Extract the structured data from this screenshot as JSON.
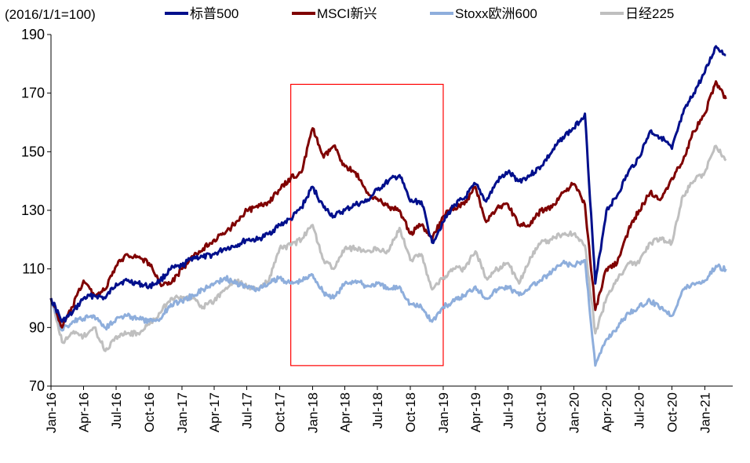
{
  "chart_data": {
    "type": "line",
    "y_unit_label": "(2016/1/1=100)",
    "ylim": [
      70,
      190
    ],
    "y_ticks": [
      "70",
      "90",
      "110",
      "130",
      "150",
      "170",
      "190"
    ],
    "x_ticks": [
      "Jan-16",
      "Apr-16",
      "Jul-16",
      "Oct-16",
      "Jan-17",
      "Apr-17",
      "Jul-17",
      "Oct-17",
      "Jan-18",
      "Apr-18",
      "Jul-18",
      "Oct-18",
      "Jan-19",
      "Apr-19",
      "Jul-19",
      "Oct-19",
      "Jan-20",
      "Apr-20",
      "Jul-20",
      "Oct-20",
      "Jan-21"
    ],
    "x_tick_dates": [
      "2016-01",
      "2016-04",
      "2016-07",
      "2016-10",
      "2017-01",
      "2017-04",
      "2017-07",
      "2017-10",
      "2018-01",
      "2018-04",
      "2018-07",
      "2018-10",
      "2019-01",
      "2019-04",
      "2019-07",
      "2019-10",
      "2020-01",
      "2020-04",
      "2020-07",
      "2020-10",
      "2021-01"
    ],
    "grid": false,
    "legend_position": "top",
    "highlight_box": {
      "x_start": "2017-11",
      "x_end": "2019-01",
      "y_range": [
        77,
        173
      ],
      "color": "#ff0000"
    },
    "series": [
      {
        "name": "标普500",
        "color": "#000f8c",
        "points": [
          [
            "2016-01",
            100
          ],
          [
            "2016-02",
            92
          ],
          [
            "2016-03",
            95
          ],
          [
            "2016-04",
            100
          ],
          [
            "2016-05",
            101
          ],
          [
            "2016-06",
            100
          ],
          [
            "2016-07",
            105
          ],
          [
            "2016-08",
            106
          ],
          [
            "2016-09",
            105
          ],
          [
            "2016-10",
            104
          ],
          [
            "2016-11",
            106
          ],
          [
            "2016-12",
            110
          ],
          [
            "2017-01",
            111
          ],
          [
            "2017-02",
            114
          ],
          [
            "2017-03",
            114
          ],
          [
            "2017-04",
            115
          ],
          [
            "2017-05",
            117
          ],
          [
            "2017-06",
            118
          ],
          [
            "2017-07",
            120
          ],
          [
            "2017-08",
            120
          ],
          [
            "2017-09",
            122
          ],
          [
            "2017-10",
            125
          ],
          [
            "2017-11",
            127
          ],
          [
            "2017-12",
            131
          ],
          [
            "2018-01",
            138
          ],
          [
            "2018-02",
            131
          ],
          [
            "2018-03",
            128
          ],
          [
            "2018-04",
            130
          ],
          [
            "2018-05",
            132
          ],
          [
            "2018-06",
            133
          ],
          [
            "2018-07",
            137
          ],
          [
            "2018-08",
            140
          ],
          [
            "2018-09",
            142
          ],
          [
            "2018-10",
            133
          ],
          [
            "2018-11",
            133
          ],
          [
            "2018-12",
            119
          ],
          [
            "2019-01",
            126
          ],
          [
            "2019-02",
            132
          ],
          [
            "2019-03",
            134
          ],
          [
            "2019-04",
            139
          ],
          [
            "2019-05",
            133
          ],
          [
            "2019-06",
            140
          ],
          [
            "2019-07",
            143
          ],
          [
            "2019-08",
            140
          ],
          [
            "2019-09",
            142
          ],
          [
            "2019-10",
            145
          ],
          [
            "2019-11",
            150
          ],
          [
            "2019-12",
            155
          ],
          [
            "2020-01",
            158
          ],
          [
            "2020-02",
            163
          ],
          [
            "2020-03",
            105
          ],
          [
            "2020-04",
            130
          ],
          [
            "2020-05",
            135
          ],
          [
            "2020-06",
            143
          ],
          [
            "2020-07",
            148
          ],
          [
            "2020-08",
            157
          ],
          [
            "2020-09",
            155
          ],
          [
            "2020-10",
            151
          ],
          [
            "2020-11",
            163
          ],
          [
            "2020-12",
            170
          ],
          [
            "2021-01",
            177
          ],
          [
            "2021-02",
            186
          ],
          [
            "2021-03",
            183
          ]
        ]
      },
      {
        "name": "MSCI新兴",
        "color": "#7f0000",
        "points": [
          [
            "2016-01",
            100
          ],
          [
            "2016-02",
            90
          ],
          [
            "2016-03",
            97
          ],
          [
            "2016-04",
            106
          ],
          [
            "2016-05",
            101
          ],
          [
            "2016-06",
            103
          ],
          [
            "2016-07",
            111
          ],
          [
            "2016-08",
            115
          ],
          [
            "2016-09",
            114
          ],
          [
            "2016-10",
            112
          ],
          [
            "2016-11",
            105
          ],
          [
            "2016-12",
            105
          ],
          [
            "2017-01",
            110
          ],
          [
            "2017-02",
            114
          ],
          [
            "2017-03",
            117
          ],
          [
            "2017-04",
            120
          ],
          [
            "2017-05",
            122
          ],
          [
            "2017-06",
            126
          ],
          [
            "2017-07",
            130
          ],
          [
            "2017-08",
            131
          ],
          [
            "2017-09",
            133
          ],
          [
            "2017-10",
            137
          ],
          [
            "2017-11",
            141
          ],
          [
            "2017-12",
            143
          ],
          [
            "2018-01",
            158
          ],
          [
            "2018-02",
            148
          ],
          [
            "2018-03",
            152
          ],
          [
            "2018-04",
            145
          ],
          [
            "2018-05",
            143
          ],
          [
            "2018-06",
            136
          ],
          [
            "2018-07",
            134
          ],
          [
            "2018-08",
            131
          ],
          [
            "2018-09",
            130
          ],
          [
            "2018-10",
            122
          ],
          [
            "2018-11",
            125
          ],
          [
            "2018-12",
            120
          ],
          [
            "2019-01",
            128
          ],
          [
            "2019-02",
            131
          ],
          [
            "2019-03",
            132
          ],
          [
            "2019-04",
            138
          ],
          [
            "2019-05",
            126
          ],
          [
            "2019-06",
            131
          ],
          [
            "2019-07",
            132
          ],
          [
            "2019-08",
            125
          ],
          [
            "2019-09",
            125
          ],
          [
            "2019-10",
            130
          ],
          [
            "2019-11",
            131
          ],
          [
            "2019-12",
            136
          ],
          [
            "2020-01",
            139
          ],
          [
            "2020-02",
            132
          ],
          [
            "2020-03",
            96
          ],
          [
            "2020-04",
            110
          ],
          [
            "2020-05",
            112
          ],
          [
            "2020-06",
            123
          ],
          [
            "2020-07",
            130
          ],
          [
            "2020-08",
            136
          ],
          [
            "2020-09",
            134
          ],
          [
            "2020-10",
            141
          ],
          [
            "2020-11",
            147
          ],
          [
            "2020-12",
            157
          ],
          [
            "2021-01",
            163
          ],
          [
            "2021-02",
            174
          ],
          [
            "2021-03",
            168
          ]
        ]
      },
      {
        "name": "Stoxx欧洲600",
        "color": "#8eaedc",
        "points": [
          [
            "2016-01",
            100
          ],
          [
            "2016-02",
            89
          ],
          [
            "2016-03",
            92
          ],
          [
            "2016-04",
            93
          ],
          [
            "2016-05",
            94
          ],
          [
            "2016-06",
            90
          ],
          [
            "2016-07",
            93
          ],
          [
            "2016-08",
            94
          ],
          [
            "2016-09",
            93
          ],
          [
            "2016-10",
            92
          ],
          [
            "2016-11",
            93
          ],
          [
            "2016-12",
            98
          ],
          [
            "2017-01",
            99
          ],
          [
            "2017-02",
            101
          ],
          [
            "2017-03",
            103
          ],
          [
            "2017-04",
            105
          ],
          [
            "2017-05",
            107
          ],
          [
            "2017-06",
            105
          ],
          [
            "2017-07",
            104
          ],
          [
            "2017-08",
            103
          ],
          [
            "2017-09",
            105
          ],
          [
            "2017-10",
            107
          ],
          [
            "2017-11",
            105
          ],
          [
            "2017-12",
            106
          ],
          [
            "2018-01",
            108
          ],
          [
            "2018-02",
            102
          ],
          [
            "2018-03",
            100
          ],
          [
            "2018-04",
            105
          ],
          [
            "2018-05",
            106
          ],
          [
            "2018-06",
            104
          ],
          [
            "2018-07",
            105
          ],
          [
            "2018-08",
            103
          ],
          [
            "2018-09",
            104
          ],
          [
            "2018-10",
            98
          ],
          [
            "2018-11",
            97
          ],
          [
            "2018-12",
            92
          ],
          [
            "2019-01",
            97
          ],
          [
            "2019-02",
            99
          ],
          [
            "2019-03",
            101
          ],
          [
            "2019-04",
            104
          ],
          [
            "2019-05",
            100
          ],
          [
            "2019-06",
            103
          ],
          [
            "2019-07",
            104
          ],
          [
            "2019-08",
            101
          ],
          [
            "2019-09",
            104
          ],
          [
            "2019-10",
            106
          ],
          [
            "2019-11",
            109
          ],
          [
            "2019-12",
            112
          ],
          [
            "2020-01",
            111
          ],
          [
            "2020-02",
            113
          ],
          [
            "2020-03",
            77
          ],
          [
            "2020-04",
            86
          ],
          [
            "2020-05",
            90
          ],
          [
            "2020-06",
            95
          ],
          [
            "2020-07",
            97
          ],
          [
            "2020-08",
            99
          ],
          [
            "2020-09",
            97
          ],
          [
            "2020-10",
            94
          ],
          [
            "2020-11",
            103
          ],
          [
            "2020-12",
            105
          ],
          [
            "2021-01",
            106
          ],
          [
            "2021-02",
            111
          ],
          [
            "2021-03",
            110
          ]
        ]
      },
      {
        "name": "日经225",
        "color": "#bfbfbf",
        "points": [
          [
            "2016-01",
            100
          ],
          [
            "2016-02",
            85
          ],
          [
            "2016-03",
            88
          ],
          [
            "2016-04",
            87
          ],
          [
            "2016-05",
            90
          ],
          [
            "2016-06",
            82
          ],
          [
            "2016-07",
            87
          ],
          [
            "2016-08",
            88
          ],
          [
            "2016-09",
            88
          ],
          [
            "2016-10",
            91
          ],
          [
            "2016-11",
            95
          ],
          [
            "2016-12",
            100
          ],
          [
            "2017-01",
            100
          ],
          [
            "2017-02",
            100
          ],
          [
            "2017-03",
            97
          ],
          [
            "2017-04",
            99
          ],
          [
            "2017-05",
            103
          ],
          [
            "2017-06",
            106
          ],
          [
            "2017-07",
            104
          ],
          [
            "2017-08",
            103
          ],
          [
            "2017-09",
            106
          ],
          [
            "2017-10",
            117
          ],
          [
            "2017-11",
            118
          ],
          [
            "2017-12",
            120
          ],
          [
            "2018-01",
            125
          ],
          [
            "2018-02",
            113
          ],
          [
            "2018-03",
            110
          ],
          [
            "2018-04",
            117
          ],
          [
            "2018-05",
            117
          ],
          [
            "2018-06",
            116
          ],
          [
            "2018-07",
            117
          ],
          [
            "2018-08",
            116
          ],
          [
            "2018-09",
            124
          ],
          [
            "2018-10",
            113
          ],
          [
            "2018-11",
            115
          ],
          [
            "2018-12",
            103
          ],
          [
            "2019-01",
            107
          ],
          [
            "2019-02",
            110
          ],
          [
            "2019-03",
            110
          ],
          [
            "2019-04",
            116
          ],
          [
            "2019-05",
            107
          ],
          [
            "2019-06",
            110
          ],
          [
            "2019-07",
            112
          ],
          [
            "2019-08",
            105
          ],
          [
            "2019-09",
            114
          ],
          [
            "2019-10",
            119
          ],
          [
            "2019-11",
            120
          ],
          [
            "2019-12",
            122
          ],
          [
            "2020-01",
            122
          ],
          [
            "2020-02",
            118
          ],
          [
            "2020-03",
            88
          ],
          [
            "2020-04",
            100
          ],
          [
            "2020-05",
            106
          ],
          [
            "2020-06",
            112
          ],
          [
            "2020-07",
            112
          ],
          [
            "2020-08",
            119
          ],
          [
            "2020-09",
            120
          ],
          [
            "2020-10",
            119
          ],
          [
            "2020-11",
            135
          ],
          [
            "2020-12",
            140
          ],
          [
            "2021-01",
            143
          ],
          [
            "2021-02",
            152
          ],
          [
            "2021-03",
            147
          ]
        ]
      }
    ]
  }
}
